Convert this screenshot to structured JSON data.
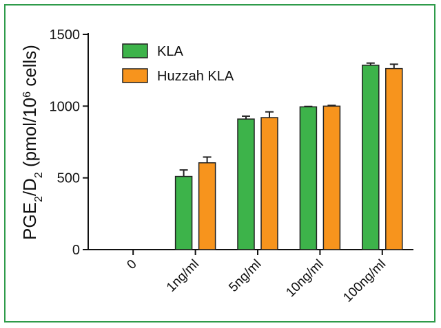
{
  "chart_data": {
    "type": "bar",
    "title": "",
    "xlabel": "",
    "ylabel": {
      "parts": [
        {
          "t": "PGE",
          "s": "n"
        },
        {
          "t": "2",
          "s": "sub"
        },
        {
          "t": "/D",
          "s": "n"
        },
        {
          "t": "2",
          "s": "sub"
        },
        {
          "t": " (pmol/10",
          "s": "n"
        },
        {
          "t": "6",
          "s": "sup"
        },
        {
          "t": " cells)",
          "s": "n"
        }
      ]
    },
    "ylim": [
      0,
      1500
    ],
    "yticks": [
      0,
      500,
      1000,
      1500
    ],
    "categories": [
      "0",
      "1ng/ml",
      "5ng/ml",
      "10ng/ml",
      "100ng/ml"
    ],
    "series": [
      {
        "name": "KLA",
        "color": "#3db34a",
        "values": [
          0,
          510,
          910,
          995,
          1285
        ],
        "errors": [
          0,
          45,
          20,
          3,
          15
        ]
      },
      {
        "name": "Huzzah KLA",
        "color": "#f7941d",
        "values": [
          0,
          605,
          920,
          1000,
          1262
        ],
        "errors": [
          0,
          40,
          40,
          5,
          30
        ]
      }
    ],
    "legend_position": "top-left",
    "grid": false
  },
  "colors": {
    "frame": "#2e9b4a",
    "axis": "#111111"
  }
}
